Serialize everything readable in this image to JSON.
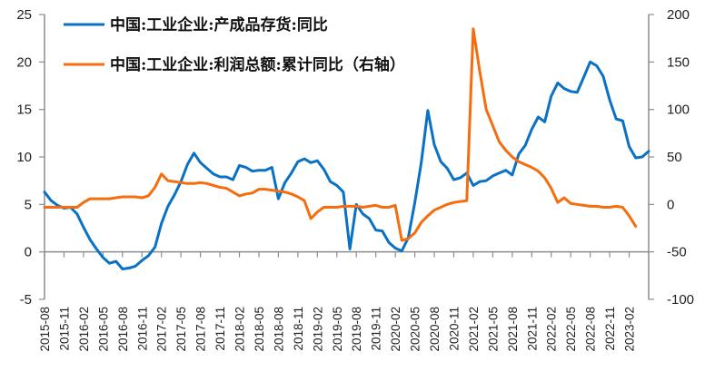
{
  "chart_data": {
    "type": "line",
    "title": "",
    "xlabel": "",
    "ylabel": "",
    "y2label": "",
    "ylim": [
      -5,
      25
    ],
    "y2lim": [
      -100,
      200
    ],
    "yticks": [
      -5,
      0,
      5,
      10,
      15,
      20,
      25
    ],
    "y2ticks": [
      -100,
      -50,
      0,
      50,
      100,
      150,
      200
    ],
    "grid": false,
    "legend_position": "top-left inside",
    "x_tick_labels": [
      "2015-08",
      "2015-11",
      "2016-02",
      "2016-05",
      "2016-08",
      "2016-11",
      "2017-02",
      "2017-05",
      "2017-08",
      "2017-11",
      "2018-02",
      "2018-05",
      "2018-08",
      "2018-11",
      "2019-02",
      "2019-05",
      "2019-08",
      "2019-11",
      "2020-02",
      "2020-05",
      "2020-08",
      "2020-11",
      "2021-02",
      "2021-05",
      "2021-08",
      "2021-11",
      "2022-02",
      "2022-05",
      "2022-08",
      "2022-11",
      "2023-02"
    ],
    "x_start": "2015-08",
    "x_end": "2023-02",
    "x_frequency": "monthly",
    "series": [
      {
        "name": "中国:工业企业:产成品存货:同比",
        "axis": "left",
        "color": "#0a72c4",
        "values": [
          6.3,
          5.4,
          4.9,
          4.6,
          4.7,
          4.0,
          2.6,
          1.3,
          0.3,
          -0.6,
          -1.2,
          -1.0,
          -1.8,
          -1.7,
          -1.5,
          -0.9,
          -0.4,
          0.5,
          3.0,
          4.8,
          6.0,
          7.4,
          9.2,
          10.4,
          9.4,
          8.8,
          8.2,
          7.9,
          7.9,
          7.6,
          9.1,
          8.9,
          8.5,
          8.6,
          8.6,
          8.9,
          5.6,
          7.3,
          8.3,
          9.5,
          9.8,
          9.4,
          9.6,
          8.7,
          7.4,
          7.0,
          6.3,
          0.3,
          5.0,
          4.0,
          3.5,
          2.3,
          2.2,
          1.0,
          0.4,
          0.1,
          1.5,
          5.2,
          9.4,
          14.9,
          11.3,
          9.5,
          8.8,
          7.6,
          7.8,
          8.3,
          7.0,
          7.4,
          7.5,
          8.0,
          8.3,
          8.6,
          8.1,
          10.3,
          11.2,
          12.9,
          14.2,
          13.7,
          16.4,
          17.8,
          17.2,
          16.9,
          16.8,
          18.4,
          20.0,
          19.6,
          18.5,
          16.0,
          14.0,
          13.8,
          11.1,
          9.9,
          10.0,
          10.6
        ],
        "note": "Approximate monthly values read from chart pixels"
      },
      {
        "name": "中国:工业企业:利润总额:累计同比（右轴）",
        "axis": "right",
        "color": "#f56d0c",
        "values": [
          -3,
          -3,
          -3,
          -3,
          -3,
          -3,
          2,
          6,
          6,
          6,
          6,
          7,
          8,
          8,
          8,
          7,
          9,
          18,
          32,
          25,
          24,
          23,
          22,
          22,
          23,
          22,
          20,
          18,
          17,
          13,
          9,
          11,
          12,
          16,
          16,
          15,
          14,
          13,
          11,
          8,
          4,
          -15,
          -8,
          -3,
          -3,
          -3,
          -2,
          -2,
          -2,
          -3,
          -2,
          -1,
          -3,
          -3,
          -1,
          -38,
          -36,
          -30,
          -19,
          -12,
          -6,
          -3,
          0,
          2,
          3,
          4,
          185,
          140,
          100,
          83,
          66,
          57,
          50,
          45,
          42,
          39,
          35,
          28,
          17,
          2,
          7,
          1,
          0,
          -1,
          -2,
          -2,
          -3,
          -3,
          -2,
          -3,
          -12,
          -23
        ],
        "note": "Approximate monthly values read from chart pixels"
      }
    ]
  },
  "legend": {
    "items": [
      {
        "label": "中国:工业企业:产成品存货:同比",
        "color": "#0a72c4"
      },
      {
        "label": "中国:工业企业:利润总额:累计同比（右轴）",
        "color": "#f56d0c"
      }
    ]
  },
  "axes": {
    "left_ticks": [
      "25",
      "20",
      "15",
      "10",
      "5",
      "0",
      "-5"
    ],
    "right_ticks": [
      "200",
      "150",
      "100",
      "50",
      "0",
      "-50",
      "-100"
    ]
  }
}
